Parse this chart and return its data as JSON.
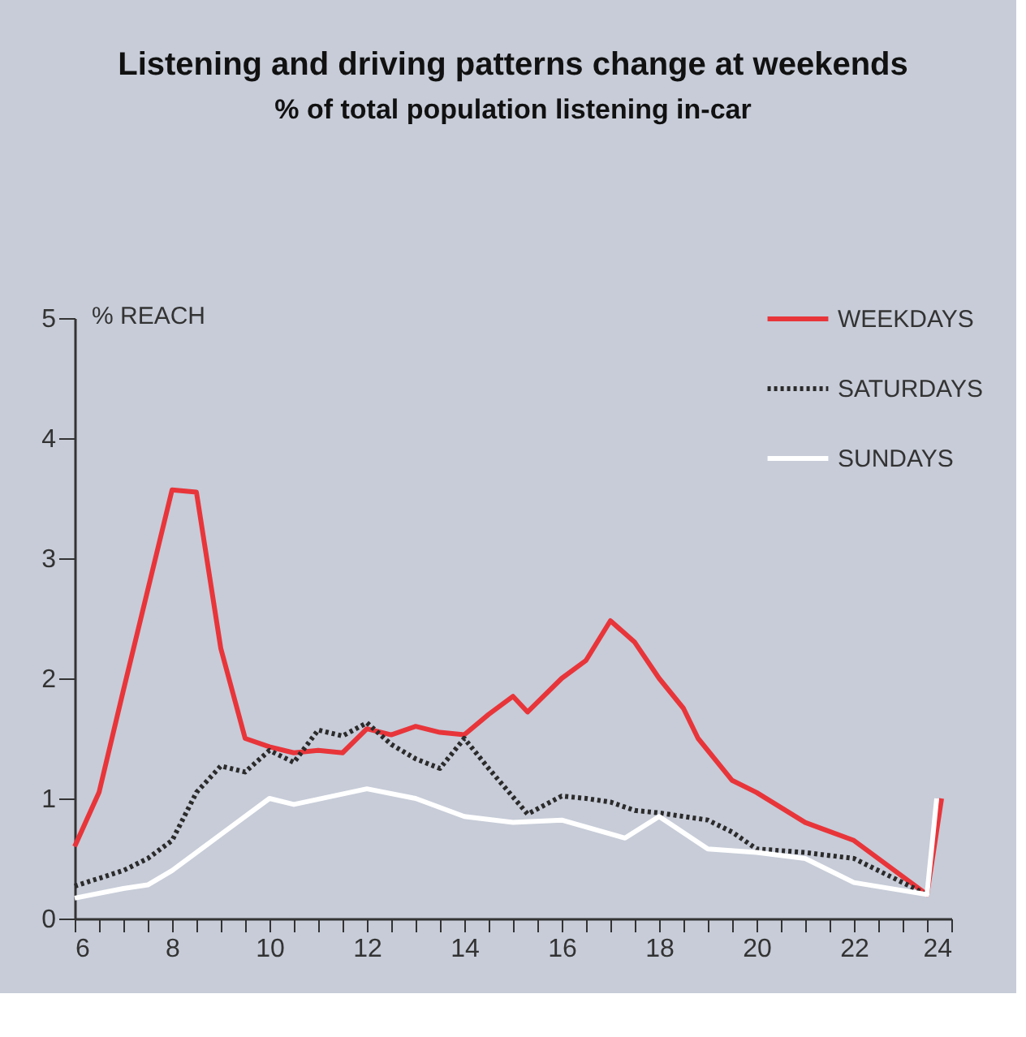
{
  "chart_data": {
    "type": "line",
    "title": "Listening and driving patterns change at weekends",
    "subtitle": "% of total population listening in-car",
    "ylabel": "% REACH",
    "xlim": [
      6,
      24
    ],
    "xticks": [
      6,
      {
        "value": 6.5,
        "label": null
      },
      {
        "value": 7,
        "label": null
      },
      {
        "value": 7.5,
        "label": null
      },
      8,
      {
        "value": 8.5,
        "label": null
      },
      {
        "value": 9,
        "label": null
      },
      {
        "value": 9.5,
        "label": null
      },
      10,
      {
        "value": 10.5,
        "label": null
      },
      {
        "value": 11,
        "label": null
      },
      {
        "value": 11.5,
        "label": null
      },
      12,
      {
        "value": 12.5,
        "label": null
      },
      {
        "value": 13,
        "label": null
      },
      {
        "value": 13.5,
        "label": null
      },
      14,
      {
        "value": 14.5,
        "label": null
      },
      {
        "value": 15,
        "label": null
      },
      {
        "value": 15.5,
        "label": null
      },
      16,
      {
        "value": 16.5,
        "label": null
      },
      {
        "value": 17,
        "label": null
      },
      {
        "value": 17.5,
        "label": null
      },
      18,
      {
        "value": 18.5,
        "label": null
      },
      {
        "value": 19,
        "label": null
      },
      {
        "value": 19.5,
        "label": null
      },
      20,
      {
        "value": 20.5,
        "label": null
      },
      {
        "value": 21,
        "label": null
      },
      {
        "value": 21.5,
        "label": null
      },
      22,
      {
        "value": 22.5,
        "label": null
      },
      {
        "value": 23,
        "label": null
      },
      {
        "value": 23.5,
        "label": null
      },
      24
    ],
    "ylim": [
      0,
      5
    ],
    "yticks": [
      0,
      1,
      2,
      3,
      4,
      5
    ],
    "grid": false,
    "legend": "top right",
    "marker": "none",
    "series": [
      {
        "name": "WEEKDAYS",
        "color": "#e8353a",
        "line_style": "solid",
        "x": [
          6,
          6.5,
          7,
          8,
          8.5,
          9,
          9.5,
          10,
          10.5,
          11,
          11.5,
          12,
          12.5,
          13,
          13.5,
          14,
          14.5,
          15,
          15.3,
          16,
          16.5,
          17,
          17.5,
          18,
          18.5,
          18.8,
          19.5,
          20,
          21,
          22,
          23.5,
          23.8
        ],
        "values": [
          0.6,
          1.05,
          1.9,
          3.57,
          3.55,
          2.25,
          1.5,
          1.43,
          1.38,
          1.4,
          1.38,
          1.58,
          1.53,
          1.6,
          1.55,
          1.53,
          1.7,
          1.85,
          1.72,
          2.0,
          2.15,
          2.48,
          2.3,
          2.0,
          1.75,
          1.5,
          1.15,
          1.05,
          0.8,
          0.65,
          0.2,
          1.0
        ]
      },
      {
        "name": "SATURDAYS",
        "color": "#2b2b2b",
        "line_style": "dotted",
        "x": [
          6,
          7,
          7.5,
          8,
          8.5,
          9,
          9.5,
          10,
          10.5,
          11,
          11.5,
          12,
          12.5,
          13,
          13.5,
          14,
          14.5,
          15.3,
          16,
          16.5,
          17,
          17.5,
          18,
          18.5,
          19,
          19.5,
          20,
          21,
          22,
          23.5
        ],
        "values": [
          0.27,
          0.4,
          0.5,
          0.65,
          1.05,
          1.27,
          1.22,
          1.4,
          1.3,
          1.57,
          1.52,
          1.63,
          1.45,
          1.33,
          1.25,
          1.5,
          1.25,
          0.87,
          1.02,
          1.0,
          0.97,
          0.9,
          0.88,
          0.85,
          0.82,
          0.72,
          0.58,
          0.55,
          0.5,
          0.2
        ]
      },
      {
        "name": "SUNDAYS",
        "color": "#ffffff",
        "line_style": "solid",
        "x": [
          6,
          7,
          7.5,
          8,
          9,
          10,
          10.5,
          12,
          13,
          14,
          15,
          16,
          17.3,
          18,
          19,
          20,
          21,
          22,
          23.5,
          23.7
        ],
        "values": [
          0.17,
          0.25,
          0.28,
          0.4,
          0.7,
          1.0,
          0.95,
          1.08,
          1.0,
          0.85,
          0.8,
          0.82,
          0.67,
          0.85,
          0.58,
          0.55,
          0.5,
          0.3,
          0.2,
          1.0
        ]
      }
    ]
  }
}
